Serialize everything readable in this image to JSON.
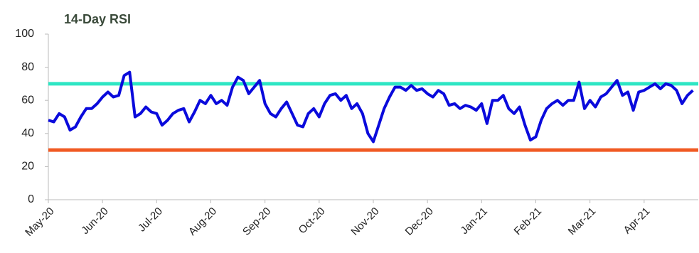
{
  "chart_data": {
    "type": "line",
    "title": "14-Day RSI",
    "categories": [
      "May-20",
      null,
      null,
      null,
      null,
      null,
      null,
      null,
      null,
      null,
      "Jun-20",
      null,
      null,
      null,
      null,
      null,
      null,
      null,
      null,
      null,
      "Jul-20",
      null,
      null,
      null,
      null,
      null,
      null,
      null,
      null,
      null,
      "Aug-20",
      null,
      null,
      null,
      null,
      null,
      null,
      null,
      null,
      null,
      "Sep-20",
      null,
      null,
      null,
      null,
      null,
      null,
      null,
      null,
      null,
      "Oct-20",
      null,
      null,
      null,
      null,
      null,
      null,
      null,
      null,
      null,
      "Nov-20",
      null,
      null,
      null,
      null,
      null,
      null,
      null,
      null,
      null,
      "Dec-20",
      null,
      null,
      null,
      null,
      null,
      null,
      null,
      null,
      null,
      "Jan-21",
      null,
      null,
      null,
      null,
      null,
      null,
      null,
      null,
      null,
      "Feb-21",
      null,
      null,
      null,
      null,
      null,
      null,
      null,
      null,
      null,
      "Mar-21",
      null,
      null,
      null,
      null,
      null,
      null,
      null,
      null,
      null,
      "Apr-21",
      null,
      null,
      null,
      null,
      null,
      null,
      null,
      null,
      null
    ],
    "series": [
      {
        "color": "#0a0adc",
        "values": [
          48,
          47,
          52,
          50,
          42,
          44,
          50,
          55,
          55,
          58,
          62,
          65,
          62,
          63,
          75,
          77,
          50,
          52,
          56,
          53,
          52,
          45,
          48,
          52,
          54,
          55,
          47,
          53,
          60,
          58,
          63,
          58,
          60,
          57,
          68,
          74,
          72,
          64,
          68,
          72,
          58,
          52,
          50,
          55,
          59,
          52,
          45,
          44,
          52,
          55,
          50,
          58,
          63,
          64,
          60,
          63,
          55,
          58,
          52,
          40,
          35,
          45,
          55,
          62,
          68,
          68,
          66,
          69,
          66,
          67,
          64,
          62,
          66,
          64,
          57,
          58,
          55,
          57,
          56,
          54,
          58,
          46,
          60,
          60,
          63,
          55,
          52,
          56,
          45,
          36,
          38,
          48,
          55,
          58,
          60,
          57,
          60,
          60,
          71,
          55,
          60,
          56,
          62,
          64,
          68,
          72,
          63,
          65,
          54,
          65,
          66,
          68,
          70,
          67,
          70,
          69,
          66,
          58,
          63,
          66
        ]
      }
    ],
    "reference_lines": [
      {
        "value": 70,
        "color": "#2ee6c4"
      },
      {
        "value": 30,
        "color": "#f05a23"
      }
    ],
    "ylim": [
      0,
      100
    ],
    "yticks": [
      0,
      20,
      40,
      60,
      80,
      100
    ]
  }
}
